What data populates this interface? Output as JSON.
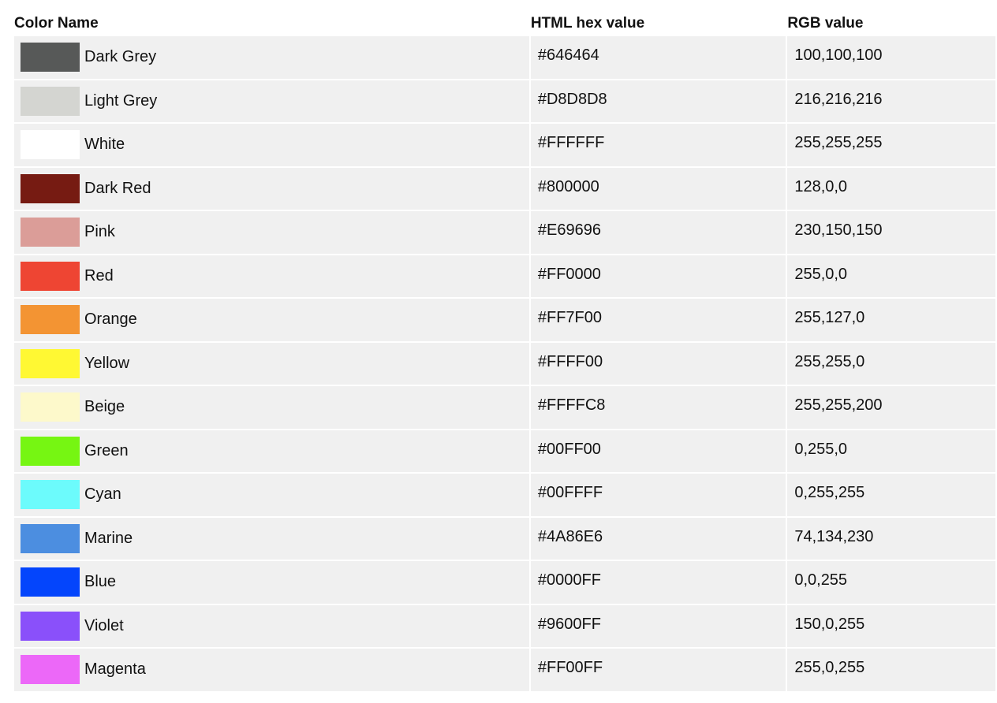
{
  "headers": {
    "name": "Color Name",
    "hex": "HTML hex value",
    "rgb": "RGB value"
  },
  "rows": [
    {
      "name": "Dark Grey",
      "hex": "#646464",
      "rgb": "100,100,100",
      "swatch": "#575958"
    },
    {
      "name": "Light Grey",
      "hex": "#D8D8D8",
      "rgb": "216,216,216",
      "swatch": "#d4d5d1"
    },
    {
      "name": "White",
      "hex": "#FFFFFF",
      "rgb": "255,255,255",
      "swatch": "#ffffff"
    },
    {
      "name": "Dark Red",
      "hex": "#800000",
      "rgb": "128,0,0",
      "swatch": "#761b12"
    },
    {
      "name": "Pink",
      "hex": "#E69696",
      "rgb": "230,150,150",
      "swatch": "#db9d98"
    },
    {
      "name": "Red",
      "hex": "#FF0000",
      "rgb": "255,0,0",
      "swatch": "#ee4533"
    },
    {
      "name": "Orange",
      "hex": "#FF7F00",
      "rgb": "255,127,0",
      "swatch": "#f39433"
    },
    {
      "name": "Yellow",
      "hex": "#FFFF00",
      "rgb": "255,255,0",
      "swatch": "#fff833"
    },
    {
      "name": "Beige",
      "hex": "#FFFFC8",
      "rgb": "255,255,200",
      "swatch": "#fdf9cb"
    },
    {
      "name": "Green",
      "hex": "#00FF00",
      "rgb": "0,255,0",
      "swatch": "#76f612"
    },
    {
      "name": "Cyan",
      "hex": "#00FFFF",
      "rgb": "0,255,255",
      "swatch": "#6cfbfc"
    },
    {
      "name": "Marine",
      "hex": "#4A86E6",
      "rgb": "74,134,230",
      "swatch": "#4c8ee0"
    },
    {
      "name": "Blue",
      "hex": "#0000FF",
      "rgb": "0,0,255",
      "swatch": "#0445fc"
    },
    {
      "name": "Violet",
      "hex": "#9600FF",
      "rgb": "150,0,255",
      "swatch": "#8a50fa"
    },
    {
      "name": "Magenta",
      "hex": "#FF00FF",
      "rgb": "255,0,255",
      "swatch": "#ec68f8"
    }
  ]
}
